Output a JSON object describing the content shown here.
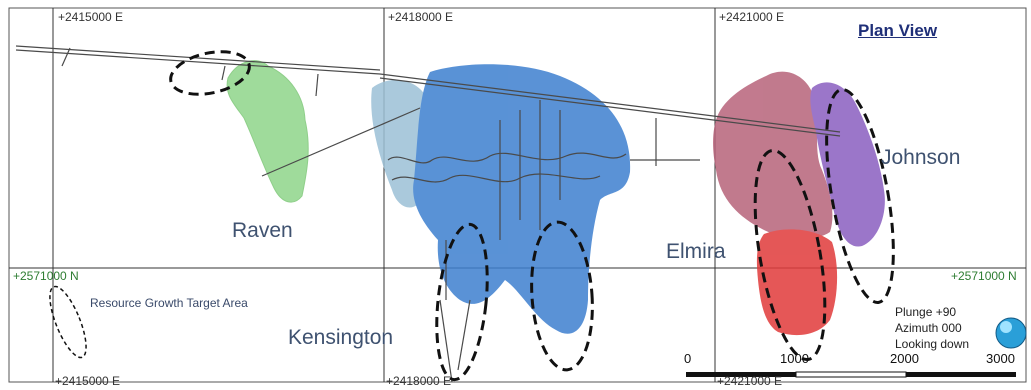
{
  "title": "Plan View",
  "grid_labels": {
    "top_e1": "+2415000 E",
    "top_e2": "+2418000 E",
    "top_e3": "+2421000 E",
    "bottom_e1": "+2415000 E",
    "bottom_e2": "+2418000 E",
    "bottom_e3": "+2421000 E",
    "north_left": "+2571000 N",
    "north_right": "+2571000 N"
  },
  "zones": {
    "raven": "Raven",
    "kensington": "Kensington",
    "elmira": "Elmira",
    "johnson": "Johnson"
  },
  "legend": {
    "label": "Resource Growth Target Area"
  },
  "view_info": {
    "plunge": "Plunge +90",
    "azimuth": "Azimuth 000",
    "looking": "Looking down"
  },
  "scale_bar": {
    "ticks": [
      "0",
      "1000",
      "2000",
      "3000"
    ]
  },
  "colors": {
    "raven": "#8fd58a",
    "kensington": "#3d7fcf",
    "kensington_light": "#9cc0d6",
    "elmira_pink": "#b7637a",
    "elmira_red": "#e03a3a",
    "johnson": "#8a5fc0",
    "grid": "#2c2c2c"
  }
}
